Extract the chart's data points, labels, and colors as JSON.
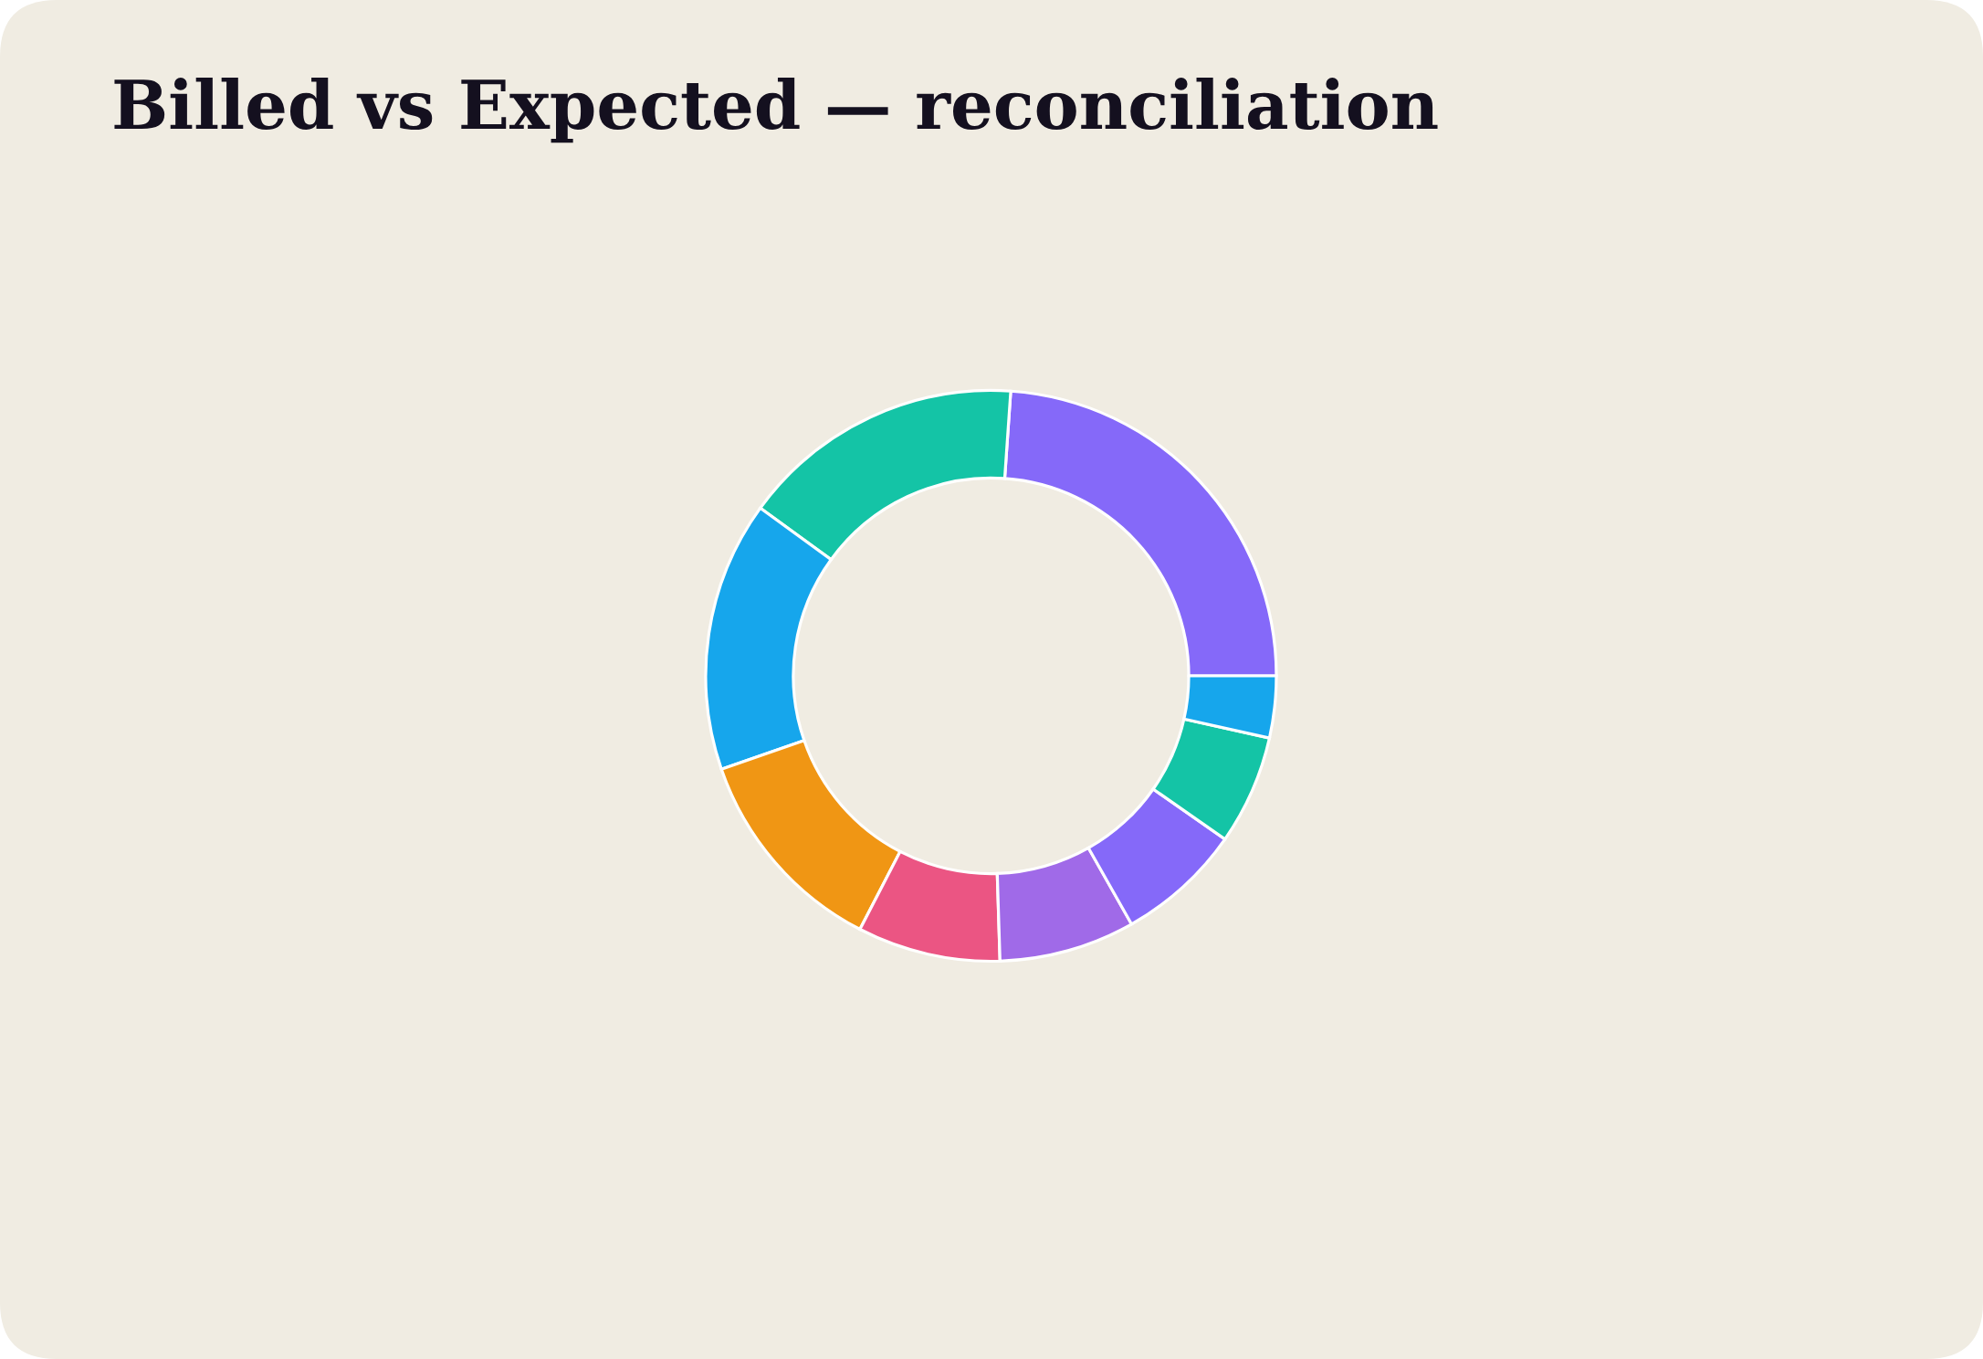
{
  "chart_data": {
    "type": "donut",
    "title": "Billed vs Expected — reconciliation",
    "categories": [
      null,
      null,
      null,
      null,
      null,
      null,
      null,
      null,
      null
    ],
    "values": [
      23.9,
      16.1,
      15.3,
      12.1,
      8.1,
      7.7,
      7.1,
      6.2,
      3.5
    ],
    "colors": [
      "#8569f9",
      "#14c4a6",
      "#16a6ec",
      "#f09614",
      "#eb5583",
      "#a06ae8",
      "#8569f9",
      "#14c4a6",
      "#16a6ec"
    ]
  }
}
